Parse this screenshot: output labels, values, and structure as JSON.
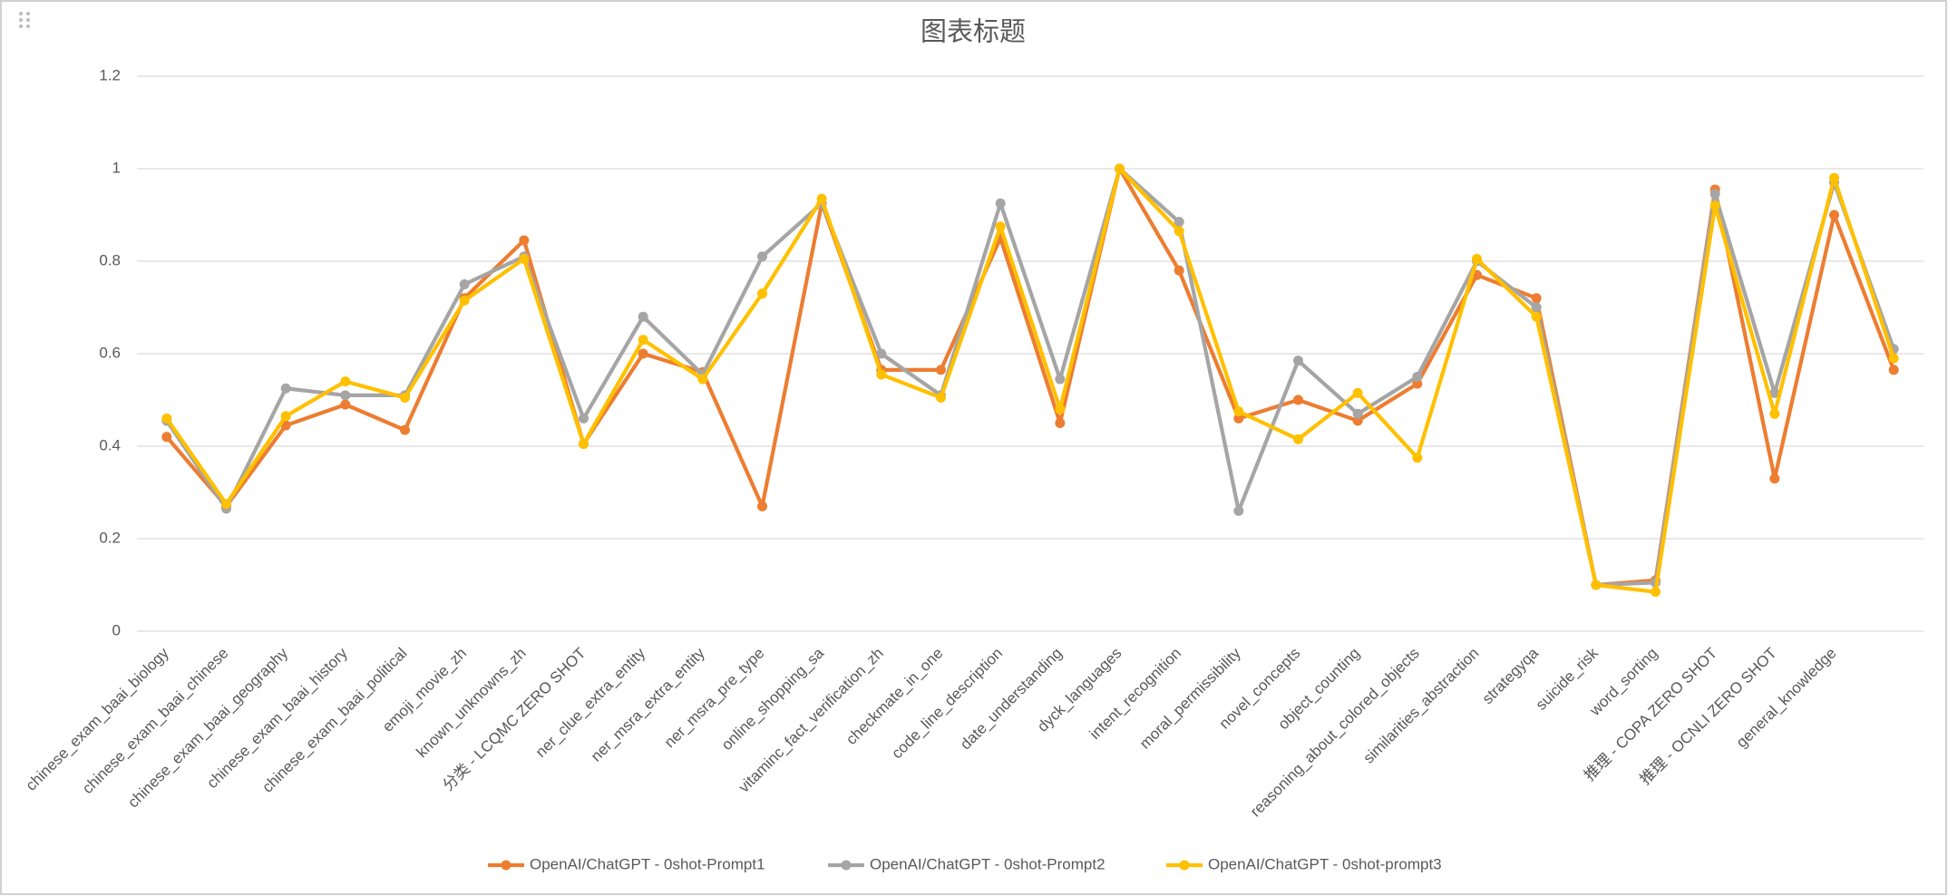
{
  "chart_data": {
    "type": "line",
    "title": "图表标题",
    "categories": [
      "chinese_exam_baai_biology",
      "chinese_exam_baai_chinese",
      "chinese_exam_baai_geography",
      "chinese_exam_baai_history",
      "chinese_exam_baai_political",
      "emoji_movie_zh",
      "known_unknowns_zh",
      "分类 - LCQMC ZERO SHOT",
      "ner_clue_extra_entity",
      "ner_msra_extra_entity",
      "ner_msra_pre_type",
      "online_shopping_sa",
      "vitaminc_fact_verification_zh",
      "checkmate_in_one",
      "code_line_description",
      "date_understanding",
      "dyck_languages",
      "intent_recognition",
      "moral_permissibility",
      "novel_concepts",
      "object_counting",
      "reasoning_about_colored_objects",
      "similarities_abstraction",
      "strategyqa",
      "suicide_risk",
      "word_sorting",
      "推理 - COPA ZERO SHOT",
      "推理 - OCNLI ZERO SHOT",
      "general_knowledge",
      null
    ],
    "series": [
      {
        "name": "OpenAI/ChatGPT - 0shot-Prompt1",
        "color": "#ED7D31",
        "values": [
          0.42,
          0.27,
          0.445,
          0.49,
          0.435,
          0.72,
          0.845,
          0.405,
          0.6,
          0.56,
          0.27,
          0.925,
          0.565,
          0.565,
          0.85,
          0.45,
          1.0,
          0.78,
          0.46,
          0.5,
          0.455,
          0.535,
          0.77,
          0.72,
          0.1,
          0.11,
          0.955,
          0.33,
          0.9,
          0.565
        ]
      },
      {
        "name": "OpenAI/ChatGPT - 0shot-Prompt2",
        "color": "#A5A5A5",
        "values": [
          0.455,
          0.265,
          0.525,
          0.51,
          0.51,
          0.75,
          0.81,
          0.46,
          0.68,
          0.555,
          0.81,
          0.925,
          0.6,
          0.51,
          0.925,
          0.545,
          1.0,
          0.885,
          0.26,
          0.585,
          0.47,
          0.55,
          0.8,
          0.7,
          0.1,
          0.105,
          0.945,
          0.515,
          0.97,
          0.61
        ]
      },
      {
        "name": "OpenAI/ChatGPT - 0shot-prompt3",
        "color": "#FFC000",
        "values": [
          0.46,
          0.275,
          0.465,
          0.54,
          0.505,
          0.715,
          0.805,
          0.405,
          0.63,
          0.545,
          0.73,
          0.935,
          0.555,
          0.505,
          0.875,
          0.48,
          1.0,
          0.865,
          0.475,
          0.415,
          0.515,
          0.375,
          0.805,
          0.68,
          0.1,
          0.085,
          0.92,
          0.47,
          0.98,
          0.59
        ]
      }
    ],
    "ylim": [
      0,
      1.2
    ],
    "yticks": [
      0,
      0.2,
      0.4,
      0.6,
      0.8,
      1,
      1.2
    ],
    "grid": true,
    "legend": "bottom"
  }
}
